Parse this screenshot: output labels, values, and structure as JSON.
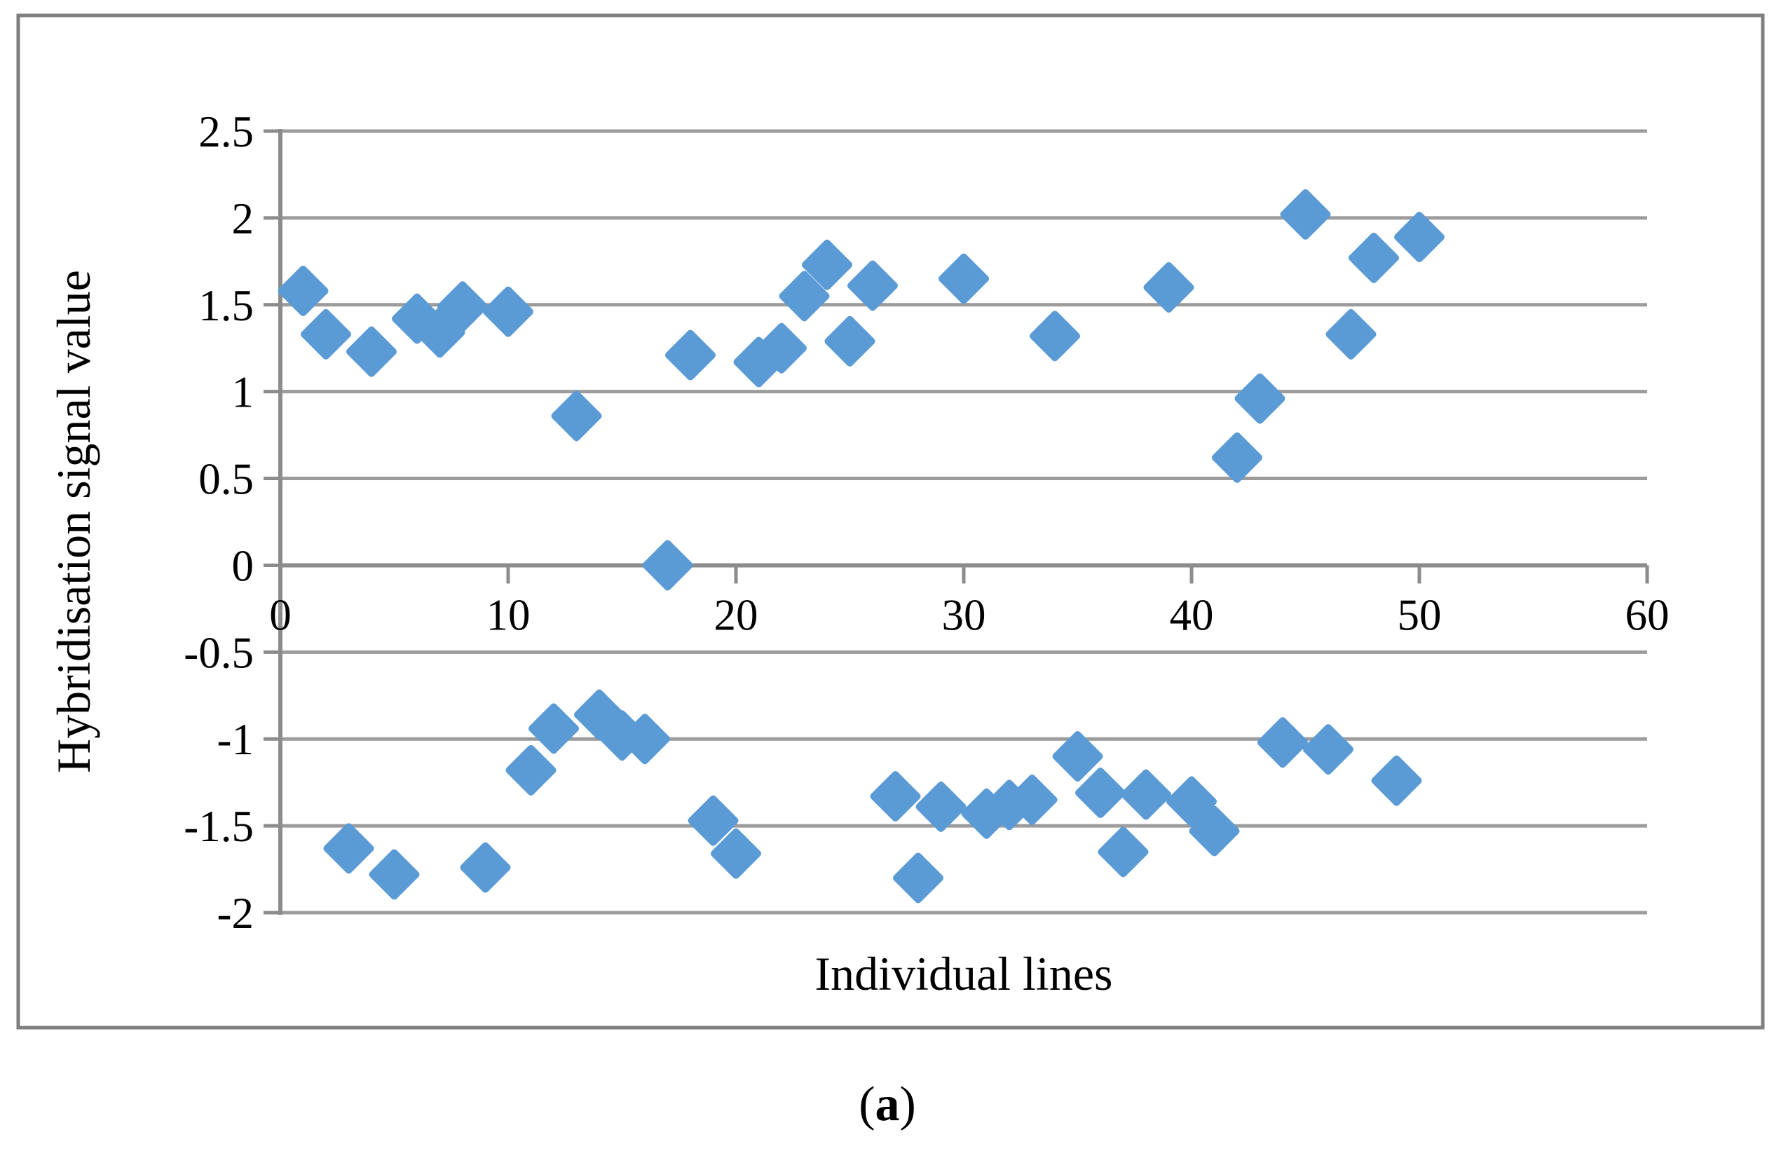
{
  "figure": {
    "caption_open": "(",
    "caption_letter": "a",
    "caption_close": ")"
  },
  "colors": {
    "marker": "#5B9BD5",
    "grid": "#9C9C9C",
    "axis": "#8C8C8C",
    "border": "#7F7F7F",
    "text": "#000000",
    "background": "#FFFFFF"
  },
  "chart_data": {
    "type": "scatter",
    "title": "",
    "xlabel": "Individual lines",
    "ylabel": "Hybridisation signal value",
    "xlim": [
      0,
      60
    ],
    "ylim": [
      -2,
      2.5
    ],
    "x_ticks": [
      0,
      10,
      20,
      30,
      40,
      50,
      60
    ],
    "y_ticks": [
      2.5,
      2,
      1.5,
      1,
      0.5,
      0,
      -0.5,
      -1,
      -1.5,
      -2
    ],
    "grid": "horizontal-only",
    "legend": "none",
    "marker": {
      "shape": "diamond",
      "color": "#5B9BD5"
    },
    "series": [
      {
        "name": "Hybridisation signal value",
        "x": [
          1,
          2,
          3,
          4,
          5,
          6,
          7,
          8,
          9,
          10,
          11,
          12,
          13,
          14,
          15,
          16,
          17,
          18,
          19,
          20,
          21,
          22,
          23,
          24,
          25,
          26,
          27,
          28,
          29,
          30,
          31,
          32,
          33,
          34,
          35,
          36,
          37,
          38,
          39,
          40,
          41,
          42,
          43,
          44,
          45,
          46,
          47,
          48,
          49,
          50
        ],
        "y": [
          1.58,
          1.33,
          -1.63,
          1.23,
          -1.78,
          1.42,
          1.34,
          1.49,
          -1.74,
          1.46,
          -1.18,
          -0.94,
          0.86,
          -0.86,
          -0.98,
          -1.0,
          0.0,
          1.21,
          -1.47,
          -1.66,
          1.17,
          1.25,
          1.55,
          1.73,
          1.29,
          1.61,
          -1.33,
          -1.8,
          -1.39,
          1.65,
          -1.43,
          -1.38,
          -1.35,
          1.32,
          -1.1,
          -1.31,
          -1.65,
          -1.32,
          1.6,
          -1.36,
          -1.53,
          0.62,
          0.96,
          -1.02,
          2.02,
          -1.06,
          1.33,
          1.77,
          -1.24,
          1.89
        ]
      }
    ]
  }
}
